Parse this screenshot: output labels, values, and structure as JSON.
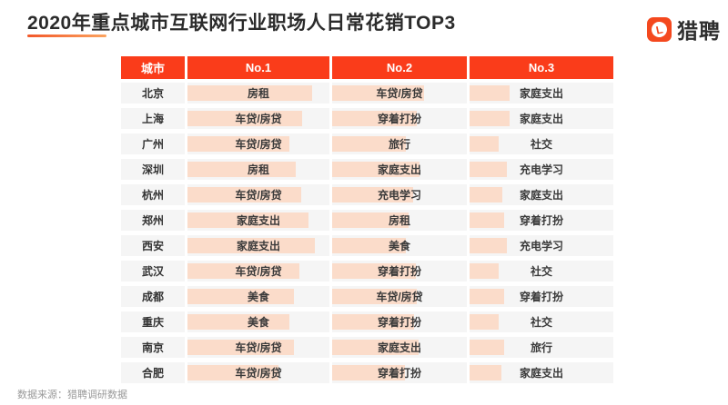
{
  "page": {
    "title": "2020年重点城市互联网行业职场人日常花销TOP3",
    "source_note": "数据来源：猎聘调研数据",
    "brand": {
      "name": "猎聘",
      "logo_letter": "L"
    }
  },
  "colors": {
    "header_bg": "#FA3C1A",
    "row_bg": "#F5F5F5",
    "bar_fill": "#FBDCCA",
    "underline_start": "#F2582A",
    "underline_end": "#FBA35F",
    "brand_orange": "#F4481E",
    "title_text": "#2B2B2B",
    "cell_text": "#3A3A3A",
    "source_text": "#999999"
  },
  "chart_data": {
    "type": "table",
    "title": "2020年重点城市互联网行业职场人日常花销TOP3",
    "columns": [
      "城市",
      "No.1",
      "No.2",
      "No.3"
    ],
    "legend_note": "bar_pct = estimated highlight-bar length as % of column width",
    "rows": [
      {
        "city": "北京",
        "no1": {
          "label": "房租",
          "bar_pct": 88
        },
        "no2": {
          "label": "车贷/房贷",
          "bar_pct": 68
        },
        "no3": {
          "label": "家庭支出",
          "bar_pct": 28
        }
      },
      {
        "city": "上海",
        "no1": {
          "label": "车贷/房贷",
          "bar_pct": 81
        },
        "no2": {
          "label": "穿着打扮",
          "bar_pct": 63
        },
        "no3": {
          "label": "家庭支出",
          "bar_pct": 28
        }
      },
      {
        "city": "广州",
        "no1": {
          "label": "车贷/房贷",
          "bar_pct": 72
        },
        "no2": {
          "label": "旅行",
          "bar_pct": 55
        },
        "no3": {
          "label": "社交",
          "bar_pct": 20
        }
      },
      {
        "city": "深圳",
        "no1": {
          "label": "房租",
          "bar_pct": 76
        },
        "no2": {
          "label": "家庭支出",
          "bar_pct": 65
        },
        "no3": {
          "label": "充电学习",
          "bar_pct": 26
        }
      },
      {
        "city": "杭州",
        "no1": {
          "label": "车贷/房贷",
          "bar_pct": 80
        },
        "no2": {
          "label": "充电学习",
          "bar_pct": 60
        },
        "no3": {
          "label": "家庭支出",
          "bar_pct": 23
        }
      },
      {
        "city": "郑州",
        "no1": {
          "label": "家庭支出",
          "bar_pct": 85
        },
        "no2": {
          "label": "房租",
          "bar_pct": 57
        },
        "no3": {
          "label": "穿着打扮",
          "bar_pct": 24
        }
      },
      {
        "city": "西安",
        "no1": {
          "label": "家庭支出",
          "bar_pct": 90
        },
        "no2": {
          "label": "美食",
          "bar_pct": 55
        },
        "no3": {
          "label": "充电学习",
          "bar_pct": 26
        }
      },
      {
        "city": "武汉",
        "no1": {
          "label": "车贷/房贷",
          "bar_pct": 79
        },
        "no2": {
          "label": "穿着打扮",
          "bar_pct": 62
        },
        "no3": {
          "label": "社交",
          "bar_pct": 20
        }
      },
      {
        "city": "成都",
        "no1": {
          "label": "美食",
          "bar_pct": 75
        },
        "no2": {
          "label": "车贷/房贷",
          "bar_pct": 63
        },
        "no3": {
          "label": "穿着打扮",
          "bar_pct": 24
        }
      },
      {
        "city": "重庆",
        "no1": {
          "label": "美食",
          "bar_pct": 72
        },
        "no2": {
          "label": "穿着打扮",
          "bar_pct": 61
        },
        "no3": {
          "label": "社交",
          "bar_pct": 20
        }
      },
      {
        "city": "南京",
        "no1": {
          "label": "车贷/房贷",
          "bar_pct": 75
        },
        "no2": {
          "label": "家庭支出",
          "bar_pct": 64
        },
        "no3": {
          "label": "旅行",
          "bar_pct": 24
        }
      },
      {
        "city": "合肥",
        "no1": {
          "label": "车贷/房贷",
          "bar_pct": 64
        },
        "no2": {
          "label": "穿着打扮",
          "bar_pct": 54
        },
        "no3": {
          "label": "家庭支出",
          "bar_pct": 22
        }
      }
    ]
  }
}
